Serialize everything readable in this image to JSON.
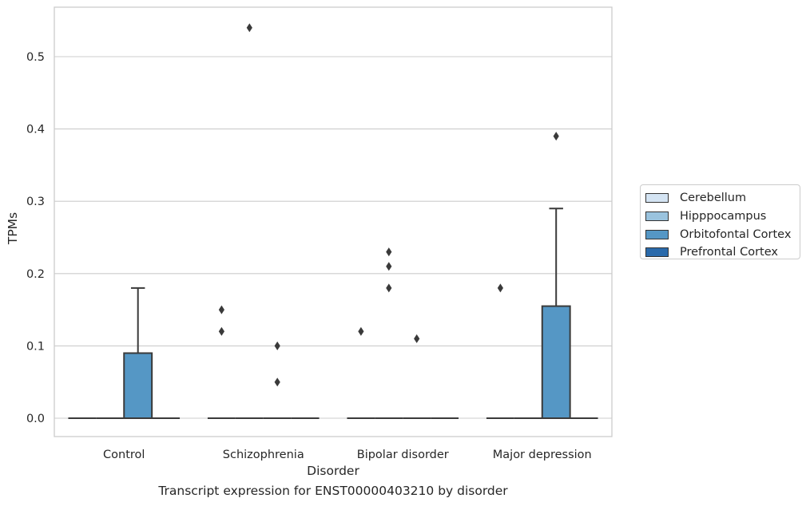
{
  "chart_data": {
    "type": "box",
    "title": "Transcript expression for ENST00000403210 by disorder",
    "xlabel": "Disorder",
    "ylabel": "TPMs",
    "ylim": [
      -0.027,
      0.567
    ],
    "yticks": [
      {
        "value": 0.0,
        "label": "0.0"
      },
      {
        "value": 0.1,
        "label": "0.1"
      },
      {
        "value": 0.2,
        "label": "0.2"
      },
      {
        "value": 0.3,
        "label": "0.3"
      },
      {
        "value": 0.4,
        "label": "0.4"
      },
      {
        "value": 0.5,
        "label": "0.5"
      }
    ],
    "categories": [
      "Control",
      "Schizophrenia",
      "Bipolar disorder",
      "Major depression"
    ],
    "grid": "horizontal",
    "legend_position": "right",
    "series": [
      {
        "name": "Cerebellum",
        "color": "#d4e4f3",
        "boxes": [
          {
            "q1": 0,
            "median": 0,
            "q3": 0,
            "whisker_low": 0,
            "whisker_high": 0,
            "outliers": []
          },
          {
            "q1": 0,
            "median": 0,
            "q3": 0,
            "whisker_low": 0,
            "whisker_high": 0,
            "outliers": [
              0.15,
              0.12
            ]
          },
          {
            "q1": 0,
            "median": 0,
            "q3": 0,
            "whisker_low": 0,
            "whisker_high": 0,
            "outliers": [
              0.12
            ]
          },
          {
            "q1": 0,
            "median": 0,
            "q3": 0,
            "whisker_low": 0,
            "whisker_high": 0,
            "outliers": [
              0.18
            ]
          }
        ]
      },
      {
        "name": "Hipppocampus",
        "color": "#9ac3de",
        "boxes": [
          {
            "q1": 0,
            "median": 0,
            "q3": 0,
            "whisker_low": 0,
            "whisker_high": 0,
            "outliers": []
          },
          {
            "q1": 0,
            "median": 0,
            "q3": 0,
            "whisker_low": 0,
            "whisker_high": 0,
            "outliers": [
              0.54
            ]
          },
          {
            "q1": 0,
            "median": 0,
            "q3": 0,
            "whisker_low": 0,
            "whisker_high": 0,
            "outliers": [
              0.23,
              0.21,
              0.18
            ]
          },
          {
            "q1": 0,
            "median": 0,
            "q3": 0,
            "whisker_low": 0,
            "whisker_high": 0,
            "outliers": []
          }
        ]
      },
      {
        "name": "Orbitofontal Cortex",
        "color": "#5597c5",
        "boxes": [
          {
            "q1": 0,
            "median": 0,
            "q3": 0.09,
            "whisker_low": 0,
            "whisker_high": 0.18,
            "outliers": []
          },
          {
            "q1": 0,
            "median": 0,
            "q3": 0,
            "whisker_low": 0,
            "whisker_high": 0,
            "outliers": [
              0.1,
              0.05
            ]
          },
          {
            "q1": 0,
            "median": 0,
            "q3": 0,
            "whisker_low": 0,
            "whisker_high": 0,
            "outliers": [
              0.11
            ]
          },
          {
            "q1": 0,
            "median": 0,
            "q3": 0.155,
            "whisker_low": 0,
            "whisker_high": 0.29,
            "outliers": [
              0.39
            ]
          }
        ]
      },
      {
        "name": "Prefrontal Cortex",
        "color": "#2a6aab",
        "boxes": [
          {
            "q1": 0,
            "median": 0,
            "q3": 0,
            "whisker_low": 0,
            "whisker_high": 0,
            "outliers": []
          },
          {
            "q1": 0,
            "median": 0,
            "q3": 0,
            "whisker_low": 0,
            "whisker_high": 0,
            "outliers": []
          },
          {
            "q1": 0,
            "median": 0,
            "q3": 0,
            "whisker_low": 0,
            "whisker_high": 0,
            "outliers": []
          },
          {
            "q1": 0,
            "median": 0,
            "q3": 0,
            "whisker_low": 0,
            "whisker_high": 0,
            "outliers": []
          }
        ]
      }
    ]
  }
}
